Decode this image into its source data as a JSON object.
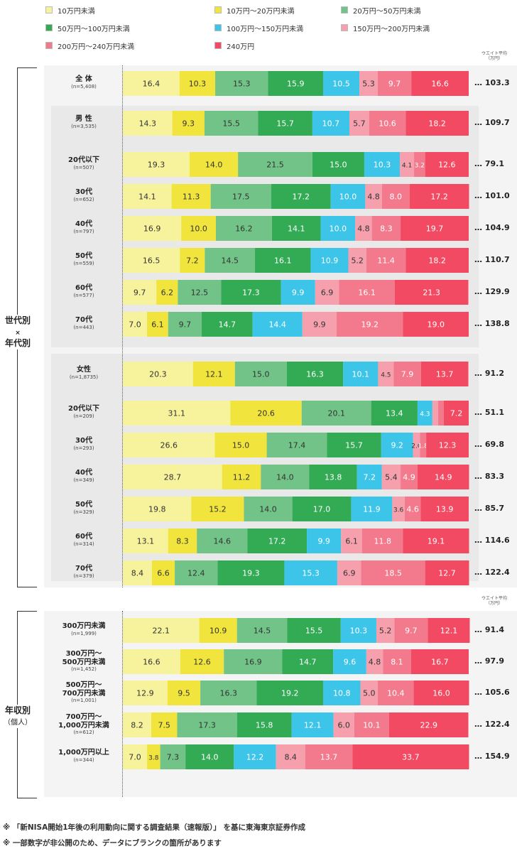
{
  "legend": [
    {
      "label": "10万円未満",
      "color": "#f7f39d"
    },
    {
      "label": "10万円～20万円未満",
      "color": "#f1e43c"
    },
    {
      "label": "20万円～50万円未満",
      "color": "#72c387"
    },
    {
      "label": "50万円～100万円未満",
      "color": "#33aa54"
    },
    {
      "label": "100万円～150万円未満",
      "color": "#3cc5e8"
    },
    {
      "label": "150万円～200万円未満",
      "color": "#f6a0ae"
    },
    {
      "label": "200万円～240万円未満",
      "color": "#f27a8c"
    },
    {
      "label": "240万円",
      "color": "#f24a62"
    }
  ],
  "avg_header": {
    "title": "ウエイト平均",
    "unit": "（万円）"
  },
  "groups": {
    "age": {
      "line1": "世代別",
      "line2": "×",
      "line3": "年代別"
    },
    "income": {
      "line1": "年収別",
      "line2": "（個人）"
    }
  },
  "chart_data": {
    "type": "bar",
    "orientation": "horizontal",
    "stacked": true,
    "unit": "%",
    "series_names": [
      "10万円未満",
      "10万円～20万円未満",
      "20万円～50万円未満",
      "50万円～100万円未満",
      "100万円～150万円未満",
      "150万円～200万円未満",
      "200万円～240万円未満",
      "240万円"
    ],
    "rows": [
      {
        "name": "全 体",
        "n": "(n=5,408)",
        "values": [
          16.4,
          10.3,
          15.3,
          15.9,
          10.5,
          5.3,
          9.7,
          16.6
        ],
        "avg": "103.3"
      },
      {
        "name": "男 性",
        "n": "(n=3,535)",
        "values": [
          14.3,
          9.3,
          15.5,
          15.7,
          10.7,
          5.7,
          10.6,
          18.2
        ],
        "avg": "109.7"
      },
      {
        "name": "20代以下",
        "n": "(n=507)",
        "values": [
          19.3,
          14.0,
          21.5,
          15.0,
          10.3,
          4.1,
          3.2,
          12.6
        ],
        "avg": "79.1"
      },
      {
        "name": "30代",
        "n": "(n=652)",
        "values": [
          14.1,
          11.3,
          17.5,
          17.2,
          10.0,
          4.8,
          8.0,
          17.2
        ],
        "avg": "101.0"
      },
      {
        "name": "40代",
        "n": "(n=797)",
        "values": [
          16.9,
          10.0,
          16.2,
          14.1,
          10.0,
          4.8,
          8.3,
          19.7
        ],
        "avg": "104.9"
      },
      {
        "name": "50代",
        "n": "(n=559)",
        "values": [
          16.5,
          7.2,
          14.5,
          16.1,
          10.9,
          5.2,
          11.4,
          18.2
        ],
        "avg": "110.7"
      },
      {
        "name": "60代",
        "n": "(n=577)",
        "values": [
          9.7,
          6.2,
          12.5,
          17.3,
          9.9,
          6.9,
          16.1,
          21.3
        ],
        "avg": "129.9"
      },
      {
        "name": "70代",
        "n": "(n=443)",
        "values": [
          7.0,
          6.1,
          9.7,
          14.7,
          14.4,
          9.9,
          19.2,
          19.0
        ],
        "avg": "138.8"
      },
      {
        "name": "女性",
        "n": "(n=1,8735)",
        "values": [
          20.3,
          12.1,
          15.0,
          16.3,
          10.1,
          4.5,
          7.9,
          13.7
        ],
        "avg": "91.2"
      },
      {
        "name": "20代以下",
        "n": "(n=209)",
        "values": [
          31.1,
          20.6,
          20.1,
          13.4,
          4.3,
          null,
          null,
          7.2
        ],
        "avg": "51.1"
      },
      {
        "name": "30代",
        "n": "(n=293)",
        "values": [
          26.6,
          15.0,
          17.4,
          15.7,
          9.2,
          2.0,
          1.8,
          12.3
        ],
        "avg": "69.8"
      },
      {
        "name": "40代",
        "n": "(n=349)",
        "values": [
          28.7,
          11.2,
          14.0,
          13.8,
          7.2,
          5.4,
          4.9,
          14.9
        ],
        "avg": "83.3"
      },
      {
        "name": "50代",
        "n": "(n=329)",
        "values": [
          19.8,
          15.2,
          14.0,
          17.0,
          11.9,
          3.6,
          4.6,
          13.9
        ],
        "avg": "85.7"
      },
      {
        "name": "60代",
        "n": "(n=314)",
        "values": [
          13.1,
          8.3,
          14.6,
          17.2,
          9.9,
          6.1,
          11.8,
          19.1
        ],
        "avg": "114.6"
      },
      {
        "name": "70代",
        "n": "(n=379)",
        "values": [
          8.4,
          6.6,
          12.4,
          19.3,
          15.3,
          6.9,
          18.5,
          12.7
        ],
        "avg": "122.4"
      },
      {
        "name": "300万円未満",
        "n": "(n=1,999)",
        "values": [
          22.1,
          10.9,
          14.5,
          15.5,
          10.3,
          5.2,
          9.7,
          12.1
        ],
        "avg": "91.4"
      },
      {
        "name": "300万円～\n500万円未満",
        "n": "(n=1,452)",
        "values": [
          16.6,
          12.6,
          16.9,
          14.7,
          9.6,
          4.8,
          8.1,
          16.7
        ],
        "avg": "97.9"
      },
      {
        "name": "500万円～\n700万円未満",
        "n": "(n=1,001)",
        "values": [
          12.9,
          9.5,
          16.3,
          19.2,
          10.8,
          5.0,
          10.4,
          16.0
        ],
        "avg": "105.6"
      },
      {
        "name": "700万円～\n1,000万円未満",
        "n": "(n=612)",
        "values": [
          8.2,
          7.5,
          17.3,
          15.8,
          12.1,
          6.0,
          10.1,
          22.9
        ],
        "avg": "122.4"
      },
      {
        "name": "1,000万円以上",
        "n": "(n=344)",
        "values": [
          7.0,
          3.8,
          7.3,
          14.0,
          12.2,
          8.4,
          13.7,
          33.7
        ],
        "avg": "154.9"
      }
    ]
  },
  "footnotes": [
    "※ 「新NISA開始1年後の利用動向に関する調査結果（速報版）」 を基に東海東京証券作成",
    "※ 一部数字が非公開のため、データにブランクの箇所があります"
  ]
}
